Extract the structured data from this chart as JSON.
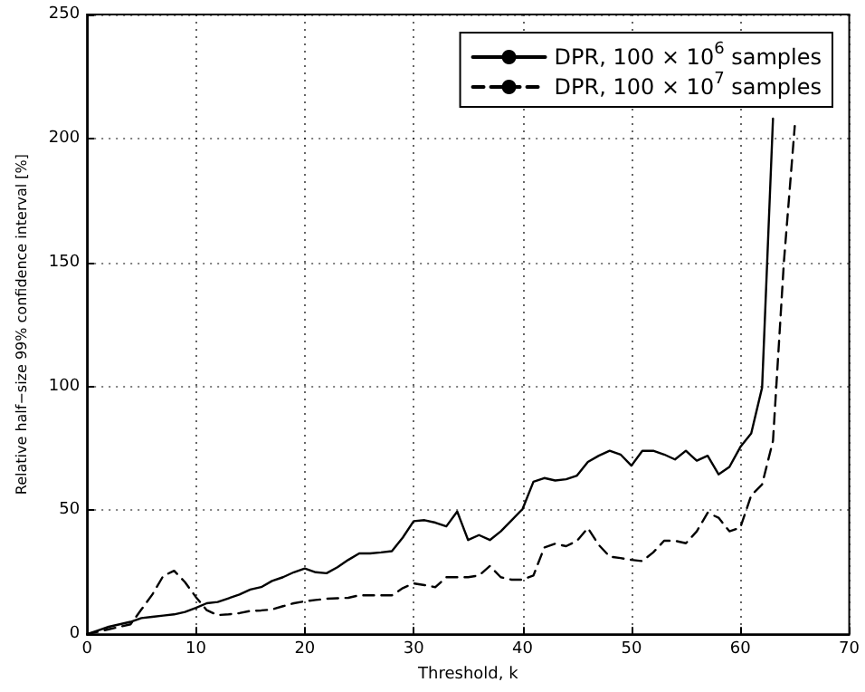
{
  "chart_data": {
    "type": "line",
    "xlabel": "Threshold, k",
    "ylabel": "Relative half−size 99% confidence interval [%]",
    "xlim": [
      0,
      70
    ],
    "xticks": [
      0,
      10,
      20,
      30,
      40,
      50,
      60,
      70
    ],
    "ylim": [
      0,
      250
    ],
    "yticks": [
      0,
      50,
      100,
      150,
      200,
      250
    ],
    "grid": true,
    "legend": "top right",
    "marker": "none",
    "series": [
      {
        "name": "DPR, 100 × 10$^{6}$ samples",
        "color": "#000000",
        "line_style": "solid",
        "x": [
          0,
          1,
          2,
          3,
          4,
          5,
          6,
          7,
          8,
          9,
          10,
          11,
          12,
          13,
          14,
          15,
          16,
          17,
          18,
          19,
          20,
          21,
          22,
          23,
          24,
          25,
          26,
          27,
          28,
          29,
          30,
          31,
          32,
          33,
          34,
          35,
          36,
          37,
          38,
          39,
          40,
          41,
          42,
          43,
          44,
          45,
          46,
          47,
          48,
          49,
          50,
          51,
          52,
          53,
          54,
          55,
          56,
          57,
          58,
          59,
          60,
          61,
          62,
          63
        ],
        "values": [
          0,
          1.5,
          3,
          4,
          5,
          6.5,
          7,
          7.5,
          8,
          9,
          10.6,
          12.5,
          13,
          14.5,
          16,
          18,
          19,
          21.5,
          23,
          25,
          26.5,
          25,
          24.6,
          27,
          30,
          32.6,
          32.6,
          33,
          33.5,
          39,
          45.6,
          46,
          45,
          43.5,
          49.5,
          38,
          40,
          38,
          41.5,
          46,
          50.5,
          61.5,
          63,
          62,
          62.5,
          64,
          69.5,
          72,
          74,
          72.5,
          68,
          74,
          74,
          72.5,
          70.5,
          74,
          70,
          72,
          64.5,
          67.5,
          75.5,
          81,
          99.5,
          208
        ]
      },
      {
        "name": "DPR, 100 × 10$^{7}$ samples",
        "color": "#000000",
        "line_style": "dashed",
        "x": [
          0,
          1,
          2,
          3,
          4,
          5,
          6,
          7,
          8,
          9,
          10,
          11,
          12,
          13,
          14,
          15,
          16,
          17,
          18,
          19,
          20,
          21,
          22,
          23,
          24,
          25,
          26,
          27,
          28,
          29,
          30,
          31,
          32,
          33,
          34,
          35,
          36,
          37,
          38,
          39,
          40,
          41,
          42,
          43,
          44,
          45,
          46,
          47,
          48,
          49,
          50,
          51,
          52,
          53,
          54,
          55,
          56,
          57,
          58,
          59,
          60,
          61,
          62,
          63,
          64,
          65
        ],
        "values": [
          0,
          1,
          2,
          3,
          4,
          10,
          16,
          23.5,
          25.6,
          21,
          15,
          9.7,
          7.7,
          8,
          8.5,
          9.4,
          9.6,
          10,
          11.3,
          12.5,
          13.3,
          13.8,
          14.3,
          14.5,
          14.7,
          15.7,
          15.7,
          15.7,
          15.7,
          18.6,
          20.5,
          19.8,
          19,
          23,
          23,
          23,
          23.7,
          27.5,
          23,
          22,
          22,
          23.7,
          35,
          36.5,
          35.5,
          37.7,
          42.8,
          36,
          31.3,
          30.7,
          30,
          29.5,
          33,
          37.7,
          37.7,
          36.7,
          41.5,
          49,
          47,
          41.5,
          43,
          56,
          60.4,
          78,
          150,
          205
        ]
      }
    ]
  }
}
